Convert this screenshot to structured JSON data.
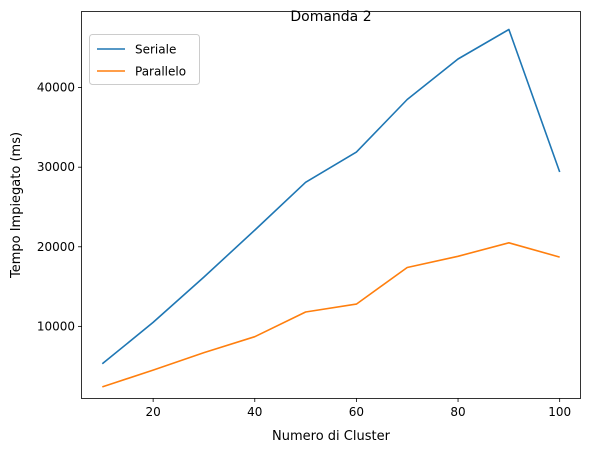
{
  "chart_data": {
    "type": "line",
    "title": "Domanda 2",
    "xlabel": "Numero di Cluster",
    "ylabel": "Tempo Impiegato (ms)",
    "x": [
      10,
      20,
      30,
      40,
      50,
      60,
      70,
      80,
      90,
      100
    ],
    "xlim": [
      6,
      104
    ],
    "ylim": [
      1000,
      49500
    ],
    "xticks": [
      20,
      40,
      60,
      80,
      100
    ],
    "yticks": [
      10000,
      20000,
      30000,
      40000
    ],
    "grid": false,
    "legend_position": "top-left",
    "series": [
      {
        "name": "Seriale",
        "color": "#1f77b4",
        "values": [
          5300,
          10500,
          16200,
          22100,
          28100,
          31900,
          38500,
          43600,
          47300,
          29400
        ]
      },
      {
        "name": "Parallelo",
        "color": "#ff7f0e",
        "values": [
          2400,
          4500,
          6700,
          8700,
          11800,
          12800,
          17400,
          18800,
          20500,
          18700
        ]
      }
    ]
  }
}
